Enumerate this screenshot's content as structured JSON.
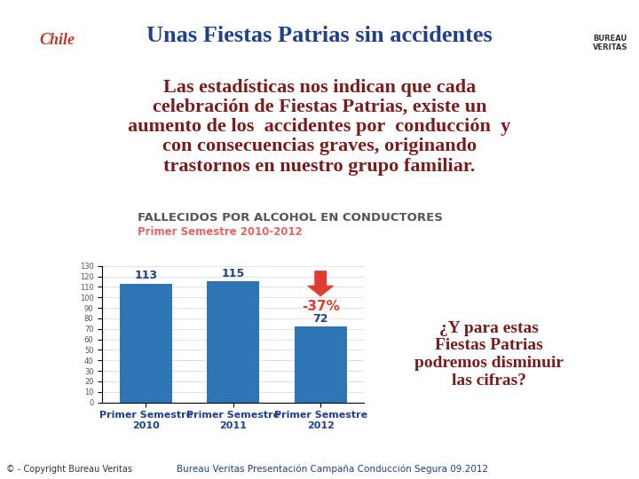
{
  "header": {
    "logo": "Chile",
    "title": "Unas Fiestas Patrias sin accidentes",
    "brand": "BUREAU\nVERITAS"
  },
  "body": "Las estadísticas nos indican que cada\ncelebración de Fiestas Patrias, existe un\naumento de los  accidentes por  conducción  y\ncon consecuencias graves, originando\ntrastornos en nuestro grupo familiar.",
  "question": "¿Y para estas\nFiestas Patrias\npodremos disminuir\nlas cifras?",
  "footer": {
    "left": "© - Copyright Bureau Veritas",
    "center": "Bureau Veritas Presentación Campaña Conducción Segura 09.2012"
  },
  "chart_data": {
    "type": "bar",
    "title": "FALLECIDOS POR ALCOHOL EN CONDUCTORES",
    "subtitle": "Primer Semestre 2010-2012",
    "categories": [
      "Primer Semestre\n2010",
      "Primer Semestre\n2011",
      "Primer Semestre\n2012"
    ],
    "values": [
      113,
      115,
      72
    ],
    "color": "#2e75b6",
    "data_labels": true,
    "annotation": "-37%",
    "ylim": [
      0,
      130
    ],
    "yticks": [
      0,
      10,
      20,
      30,
      40,
      50,
      60,
      70,
      80,
      90,
      100,
      110,
      120,
      130
    ],
    "grid": true
  }
}
